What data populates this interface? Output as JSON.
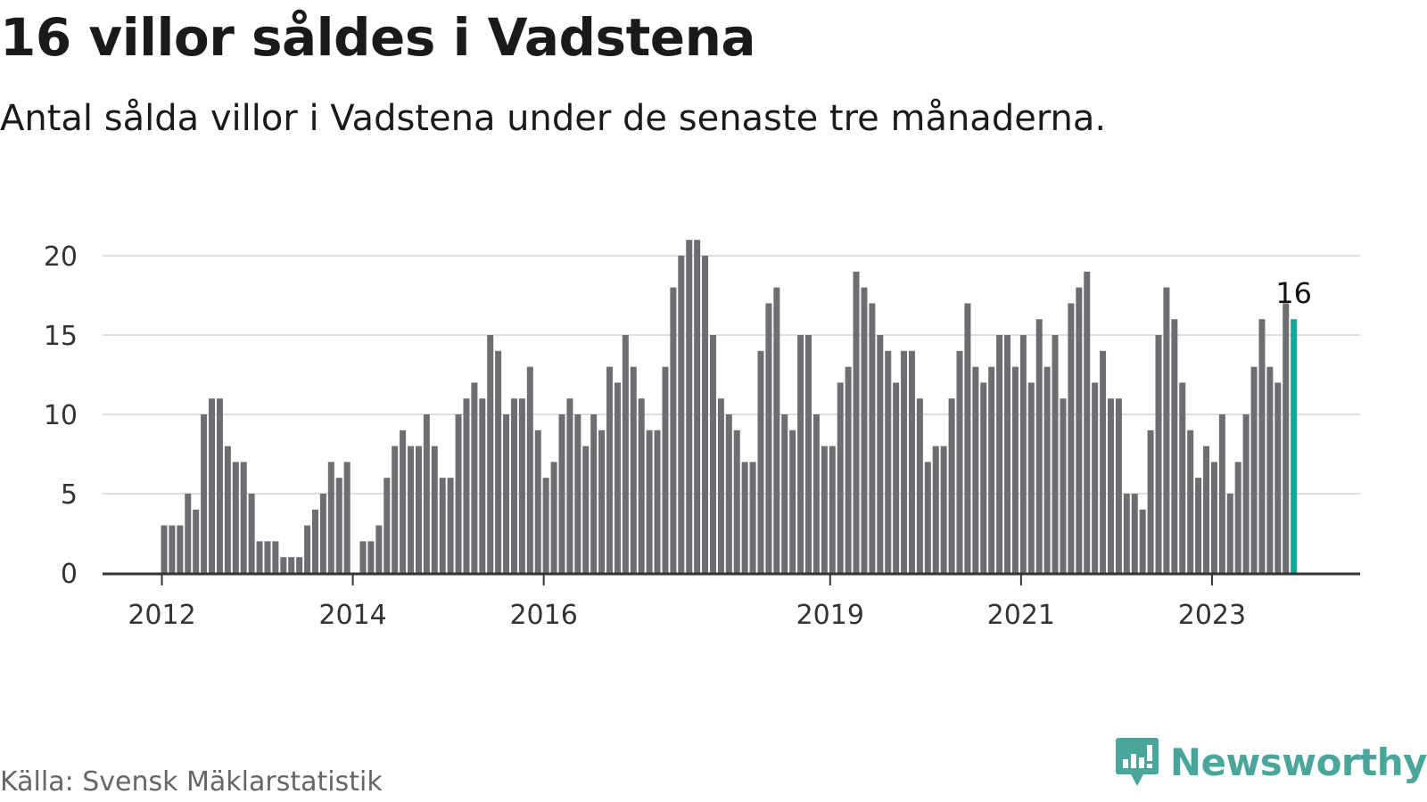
{
  "title": "16 villor såldes i Vadstena",
  "subtitle": "Antal sålda villor i Vadstena under de senaste tre månaderna.",
  "source": "Källa: Svensk Mäklarstatistik",
  "brand": {
    "name": "Newsworthy",
    "icon": "newsworthy-logo-icon",
    "color": "#4aa59a"
  },
  "colors": {
    "bar": "#6e6d72",
    "highlight": "#14a89b",
    "grid": "#dddddd",
    "axis": "#333333"
  },
  "chart_data": {
    "type": "bar",
    "x_ticks": [
      "2012",
      "2014",
      "2016",
      "2019",
      "2021",
      "2023"
    ],
    "ylim": [
      0,
      21
    ],
    "yticks": [
      0,
      5,
      10,
      15,
      20
    ],
    "grid": true,
    "highlight_label": "16",
    "values": [
      3,
      3,
      3,
      5,
      4,
      10,
      11,
      11,
      8,
      7,
      7,
      5,
      2,
      2,
      2,
      1,
      1,
      1,
      3,
      4,
      5,
      7,
      6,
      7,
      null,
      2,
      2,
      3,
      6,
      8,
      9,
      8,
      8,
      10,
      8,
      6,
      6,
      10,
      11,
      12,
      11,
      15,
      14,
      10,
      11,
      11,
      13,
      9,
      6,
      7,
      10,
      11,
      10,
      8,
      10,
      9,
      13,
      12,
      15,
      13,
      11,
      9,
      9,
      13,
      18,
      20,
      21,
      21,
      20,
      15,
      11,
      10,
      9,
      7,
      7,
      14,
      17,
      18,
      10,
      9,
      15,
      15,
      10,
      8,
      8,
      12,
      13,
      19,
      18,
      17,
      15,
      14,
      12,
      14,
      14,
      11,
      7,
      8,
      8,
      11,
      14,
      17,
      13,
      12,
      13,
      15,
      15,
      13,
      15,
      12,
      16,
      13,
      15,
      11,
      17,
      18,
      19,
      12,
      14,
      11,
      11,
      5,
      5,
      4,
      9,
      15,
      18,
      16,
      12,
      9,
      6,
      8,
      7,
      10,
      5,
      7,
      10,
      13,
      16,
      13,
      12,
      17,
      16
    ]
  }
}
